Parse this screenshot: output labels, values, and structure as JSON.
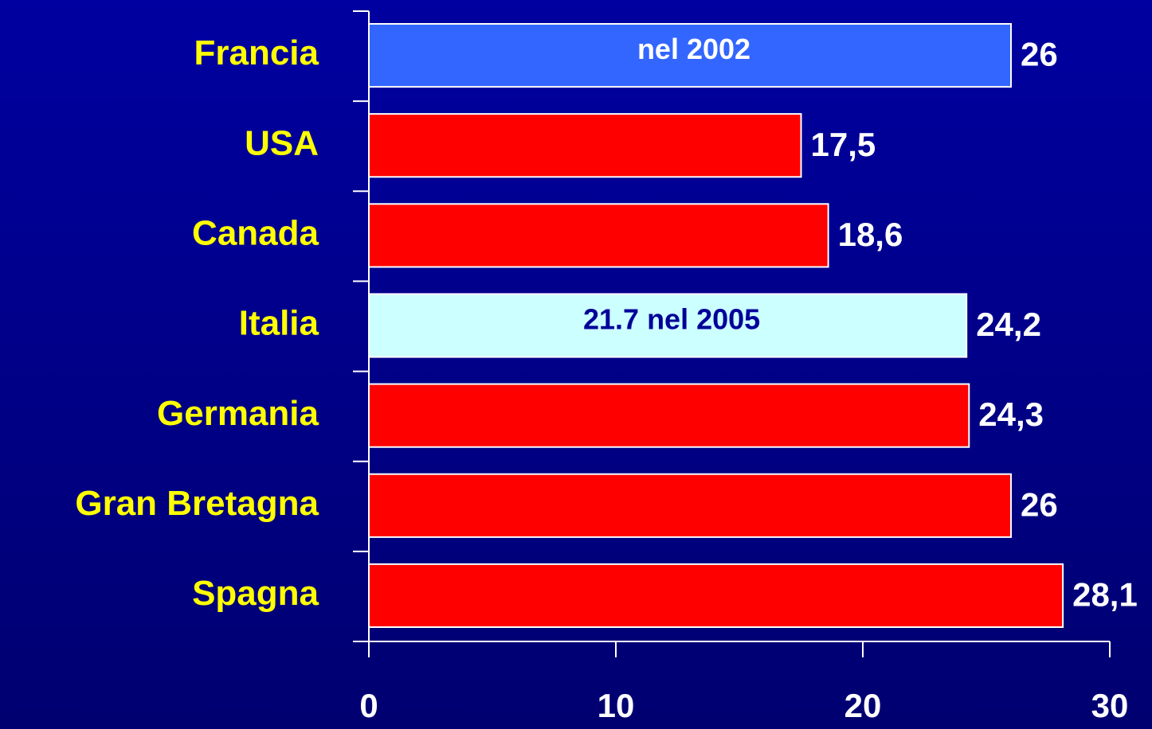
{
  "chart_data": {
    "type": "bar",
    "orientation": "horizontal",
    "categories": [
      "Francia",
      "USA",
      "Canada",
      "Italia",
      "Germania",
      "Gran Bretagna",
      "Spagna"
    ],
    "values": [
      26,
      17.5,
      18.6,
      24.2,
      24.3,
      26,
      28.1
    ],
    "value_labels": [
      "26",
      "17,5",
      "18,6",
      "24,2",
      "24,3",
      "26",
      "28,1"
    ],
    "colors": [
      "#3366ff",
      "#ff0000",
      "#ff0000",
      "#ccffff",
      "#ff0000",
      "#ff0000",
      "#ff0000"
    ],
    "annotations": [
      {
        "text": "nel 2002",
        "category": "Francia",
        "color": "#ffffff"
      },
      {
        "text": "21.7 nel 2005",
        "category": "Italia",
        "color": "#000099"
      }
    ],
    "xlim": [
      0,
      30
    ],
    "xticks": [
      0,
      10,
      20,
      30
    ],
    "grid": false
  }
}
